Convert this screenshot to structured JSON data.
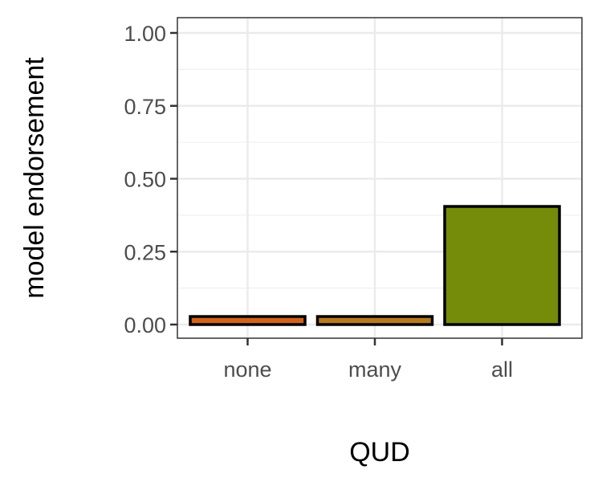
{
  "chart_data": {
    "type": "bar",
    "categories": [
      "none",
      "many",
      "all"
    ],
    "values": [
      0.025,
      0.02,
      0.405
    ],
    "colors": [
      "#d0621c",
      "#b7791f",
      "#758b0a"
    ],
    "xlabel": "QUD",
    "ylabel": "model endorsement",
    "ylim": [
      0,
      1
    ],
    "yticks": [
      0,
      0.25,
      0.5,
      0.75,
      1
    ],
    "ytick_labels": [
      "0.00",
      "0.25",
      "0.50",
      "0.75",
      "1.00"
    ],
    "grid": true,
    "theme": "bw"
  }
}
